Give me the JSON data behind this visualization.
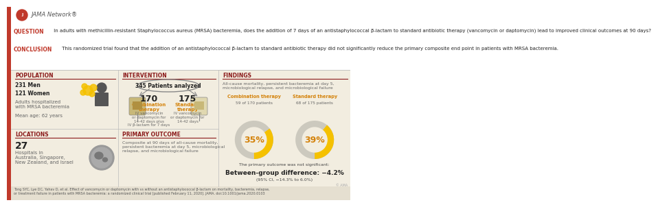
{
  "bg_cream": "#f2ede0",
  "bg_white": "#ffffff",
  "red_accent": "#c0392b",
  "orange_color": "#d4820a",
  "section_header_color": "#8B1A1A",
  "gold_color": "#f5c100",
  "gray_donut": "#ccc9be",
  "dark_text": "#222222",
  "mid_text": "#444444",
  "light_text": "#666666",
  "title_text": "JAMA Network®",
  "question_label": "QUESTION",
  "question_text": " In adults with methicillin-resistant Staphylococcus aureus (MRSA) bacteremia, does the addition of 7 days of an antistaphylococcal β-lactam to standard antibiotic therapy (vancomycin or daptomycin) lead to improved clinical outcomes at 90 days?",
  "conclusion_label": "CONCLUSION",
  "conclusion_text": " This randomized trial found that the addition of an antistaphylococcal β-lactam to standard antibiotic therapy did not significantly reduce the primary composite end point in patients with MRSA bacteremia.",
  "pop_header": "POPULATION",
  "pop_men": "231 Men",
  "pop_women": "121 Women",
  "pop_desc": "Adults hospitalized\nwith MRSA bacteremia",
  "pop_age": "Mean age: 62 years",
  "loc_header": "LOCATIONS",
  "loc_num": "27",
  "loc_desc": "Hospitals in\nAustralia, Singapore,\nNew Zealand, and Israel",
  "int_header": "INTERVENTION",
  "int_patients": "345 Patients analyzed",
  "combo_n": "170",
  "combo_label": "Combination\ntherapy",
  "combo_desc": "IV vancomycin\nor daptomycin for\n14-42 days plus\nIV β-lactam for 7 days",
  "std_n": "175",
  "std_label": "Standard\ntherapy",
  "std_desc": "IV vancomycin\nor daptomycin for\n14-42 days",
  "outcome_header": "PRIMARY OUTCOME",
  "outcome_text": "Composite at 90 days of all-cause mortality,\npersistent bacteremia at day 5, microbiological\nrelapse, and microbiological failure",
  "findings_header": "FINDINGS",
  "findings_desc": "All-cause mortality, persistent bacteremia at day 5,\nmicrobiological relapse, and microbiological failure",
  "combo_therapy_label": "Combination therapy",
  "combo_therapy_sub": "59 of 170 patients",
  "std_therapy_label": "Standard therapy",
  "std_therapy_sub": "68 of 175 patients",
  "combo_pct": 35,
  "std_pct": 39,
  "significance_text": "The primary outcome was not significant:",
  "diff_label": "Between-group difference: ",
  "diff_value": "−4.2%",
  "ci_text": "(95% CI, −14.3% to 6.0%)",
  "citation": "Tong SYC, Lye DC, Yahav D, et al. Effect of vancomycin or daptomycin with vs without an antistaphylococcal β-lactam on mortality, bacteremia, relapse,\nor treatment failure in patients with MRSA bacteremia: a randomized clinical trial [published February 11, 2020]. JAMA. doi:10.1001/jama.2020.0103"
}
